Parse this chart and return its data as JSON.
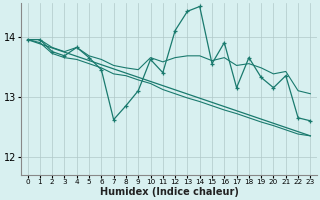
{
  "xlabel": "Humidex (Indice chaleur)",
  "bg_color": "#d8f0f0",
  "grid_color": "#b0c8c8",
  "line_color": "#1a7a6e",
  "xlim": [
    -0.5,
    23.5
  ],
  "ylim": [
    11.7,
    14.55
  ],
  "xticks": [
    0,
    1,
    2,
    3,
    4,
    5,
    6,
    7,
    8,
    9,
    10,
    11,
    12,
    13,
    14,
    15,
    16,
    17,
    18,
    19,
    20,
    21,
    22,
    23
  ],
  "yticks": [
    12,
    13,
    14
  ],
  "data_x": [
    0,
    1,
    2,
    3,
    4,
    5,
    6,
    7,
    8,
    9,
    10,
    11,
    12,
    13,
    14,
    15,
    16,
    17,
    18,
    19,
    20,
    21,
    22,
    23
  ],
  "main_y": [
    13.95,
    13.95,
    13.75,
    13.68,
    13.82,
    13.65,
    13.45,
    12.62,
    12.85,
    13.1,
    13.62,
    13.4,
    14.1,
    14.42,
    14.5,
    13.55,
    13.9,
    13.15,
    13.65,
    13.32,
    13.15,
    13.35,
    12.65,
    12.6
  ],
  "trend_y_start": 13.95,
  "trend_y_end": 12.35,
  "upper_y": [
    13.95,
    13.95,
    13.82,
    13.75,
    13.82,
    13.68,
    13.62,
    13.52,
    13.48,
    13.45,
    13.65,
    13.58,
    13.65,
    13.68,
    13.68,
    13.6,
    13.65,
    13.52,
    13.55,
    13.48,
    13.38,
    13.42,
    13.1,
    13.05
  ],
  "lower_y": [
    13.95,
    13.9,
    13.72,
    13.65,
    13.62,
    13.55,
    13.48,
    13.38,
    13.35,
    13.28,
    13.22,
    13.12,
    13.05,
    12.98,
    12.92,
    12.85,
    12.78,
    12.72,
    12.65,
    12.58,
    12.52,
    12.45,
    12.38,
    12.35
  ]
}
